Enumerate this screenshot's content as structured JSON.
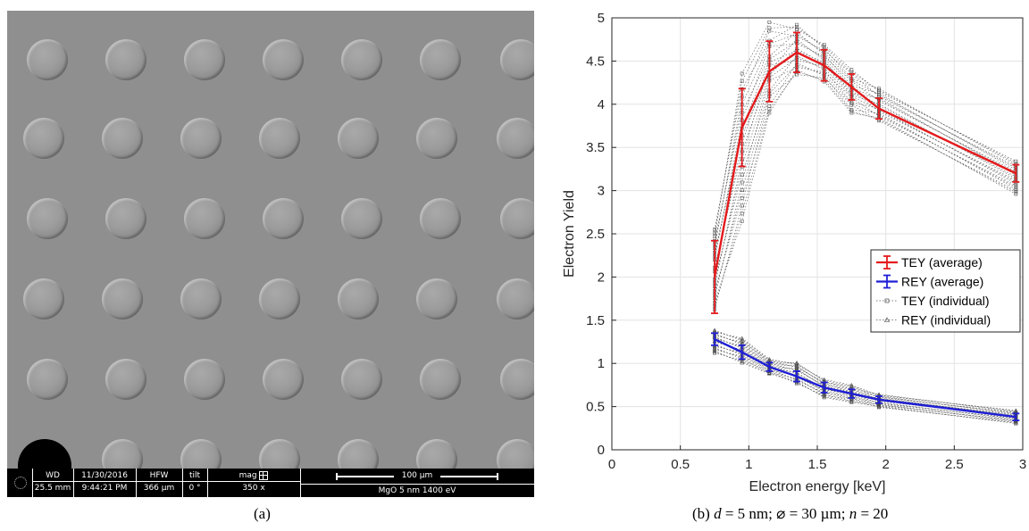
{
  "panel_a": {
    "caption": "(a)",
    "databar": {
      "wd_label": "WD",
      "wd_value": "25.5 mm",
      "date_label": "11/30/2016",
      "time_value": "9:44:21 PM",
      "hfw_label": "HFW",
      "hfw_value": "366 µm",
      "tilt_label": "tilt",
      "tilt_value": "0 °",
      "mag_label": "mag",
      "mag_value": "350 x",
      "scale_label": "100 µm",
      "sample_label": "MgO 5 nm 1400 eV"
    }
  },
  "panel_b": {
    "caption_prefix": "(b) ",
    "caption_d": "d",
    "caption_d_value": " = 5 nm; ⌀ = 30 µm; ",
    "caption_n": "n",
    "caption_n_value": " = 20"
  },
  "chart_data": {
    "type": "line",
    "xlabel": "Electron energy [keV]",
    "ylabel": "Electron Yield",
    "xlim": [
      0,
      3
    ],
    "ylim": [
      0,
      5
    ],
    "xticks": [
      "0",
      "0.5",
      "1",
      "1.5",
      "2",
      "2.5",
      "3"
    ],
    "yticks": [
      "0",
      "0.5",
      "1",
      "1.5",
      "2",
      "2.5",
      "3",
      "3.5",
      "4",
      "4.5",
      "5"
    ],
    "grid": true,
    "legend_position": "center-right",
    "x": [
      0.75,
      0.95,
      1.15,
      1.35,
      1.55,
      1.75,
      1.95,
      2.95
    ],
    "series": [
      {
        "name": "TEY (average)",
        "color": "#e41a1c",
        "style": "solid-errorbar",
        "values": [
          2.0,
          3.73,
          4.38,
          4.6,
          4.45,
          4.2,
          3.95,
          3.2
        ],
        "errors": [
          0.42,
          0.45,
          0.35,
          0.23,
          0.18,
          0.15,
          0.12,
          0.1
        ]
      },
      {
        "name": "REY (average)",
        "color": "#1f1fd6",
        "style": "solid-errorbar",
        "values": [
          1.28,
          1.13,
          0.96,
          0.85,
          0.72,
          0.65,
          0.58,
          0.38
        ],
        "errors": [
          0.07,
          0.08,
          0.05,
          0.06,
          0.06,
          0.05,
          0.04,
          0.04
        ]
      },
      {
        "name": "TEY (individual)",
        "color": "#000000",
        "style": "dotted-square",
        "values_min": [
          1.55,
          2.6,
          3.9,
          4.3,
          4.25,
          3.9,
          3.78,
          2.95
        ],
        "values_max": [
          2.6,
          4.4,
          4.95,
          4.95,
          4.7,
          4.4,
          4.2,
          3.35
        ]
      },
      {
        "name": "REY (individual)",
        "color": "#000000",
        "style": "dotted-triangle",
        "values_min": [
          1.1,
          1.0,
          0.88,
          0.75,
          0.6,
          0.55,
          0.48,
          0.3
        ],
        "values_max": [
          1.4,
          1.3,
          1.05,
          1.02,
          0.82,
          0.75,
          0.65,
          0.46
        ]
      }
    ]
  }
}
